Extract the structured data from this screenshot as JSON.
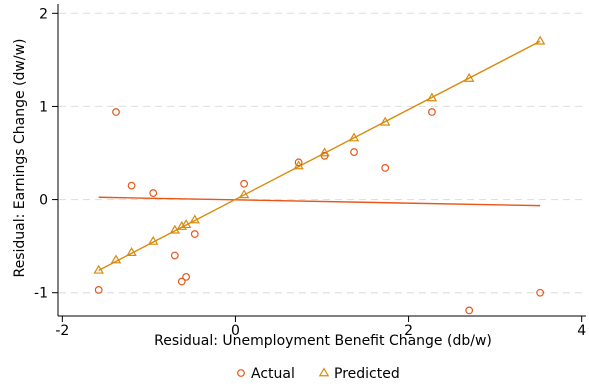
{
  "chart_data": {
    "type": "scatter",
    "xlabel": "Residual: Unemployment Benefit Change (db/w)",
    "ylabel": "Residual: Earnings Change (dw/w)",
    "xlim": [
      -2.05,
      4.05
    ],
    "ylim": [
      -1.25,
      2.1
    ],
    "x_ticks": [
      -2,
      0,
      2,
      4
    ],
    "y_ticks": [
      -1,
      0,
      1,
      2
    ],
    "grid": "horizontal-dashed",
    "legend_position": "bottom-center",
    "colors": {
      "actual": "#e8561a",
      "predicted": "#d98a0b"
    },
    "series": [
      {
        "name": "Actual",
        "marker": "circle",
        "points": [
          [
            -1.58,
            -0.97
          ],
          [
            -1.38,
            0.94
          ],
          [
            -1.2,
            0.15
          ],
          [
            -0.95,
            0.07
          ],
          [
            -0.7,
            -0.6
          ],
          [
            -0.62,
            -0.88
          ],
          [
            -0.57,
            -0.83
          ],
          [
            -0.47,
            -0.37
          ],
          [
            0.1,
            0.17
          ],
          [
            0.73,
            0.4
          ],
          [
            1.03,
            0.47
          ],
          [
            1.37,
            0.51
          ],
          [
            1.73,
            0.34
          ],
          [
            2.27,
            0.94
          ],
          [
            2.7,
            -1.19
          ],
          [
            3.52,
            -1.0
          ]
        ]
      },
      {
        "name": "Predicted",
        "marker": "triangle",
        "points": [
          [
            -1.58,
            -0.76
          ],
          [
            -1.38,
            -0.65
          ],
          [
            -1.2,
            -0.57
          ],
          [
            -0.95,
            -0.45
          ],
          [
            -0.7,
            -0.33
          ],
          [
            -0.62,
            -0.29
          ],
          [
            -0.57,
            -0.27
          ],
          [
            -0.47,
            -0.22
          ],
          [
            0.1,
            0.05
          ],
          [
            0.73,
            0.36
          ],
          [
            1.03,
            0.5
          ],
          [
            1.37,
            0.66
          ],
          [
            1.73,
            0.83
          ],
          [
            2.27,
            1.09
          ],
          [
            2.7,
            1.3
          ],
          [
            3.52,
            1.7
          ]
        ]
      }
    ],
    "fit_lines": [
      {
        "of": "Actual",
        "x": [
          -1.58,
          3.52
        ],
        "y": [
          0.025,
          -0.065
        ]
      },
      {
        "of": "Predicted",
        "x": [
          -1.58,
          3.52
        ],
        "y": [
          -0.76,
          1.7
        ]
      }
    ]
  }
}
